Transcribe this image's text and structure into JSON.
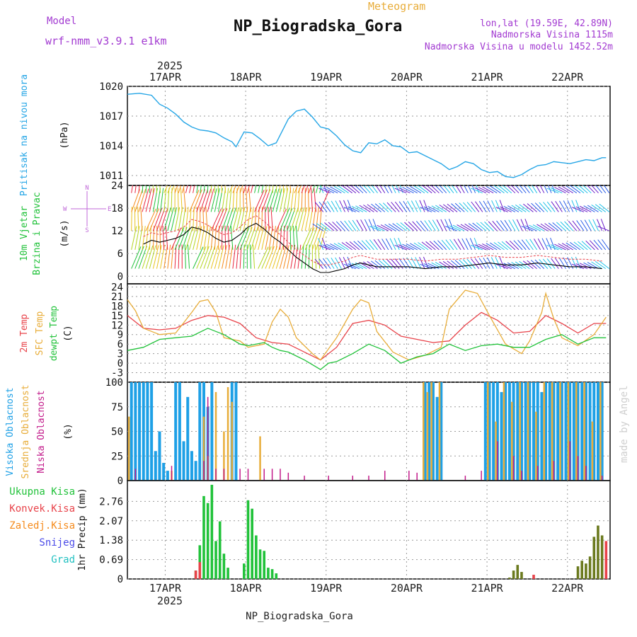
{
  "header": {
    "model_label": "Model",
    "model_name": "wrf-nmm_v3.9.1 e1km",
    "product": "Meteogram",
    "station": "NP_Biogradska_Gora",
    "lonlat": "lon,lat (19.59E, 42.89N)",
    "elevation": "Nadmorska Visina 1115m",
    "model_elevation": "Nadmorska Visina u modelu 1452.52m",
    "credit": "made by Angel",
    "footer": "NP_Biogradska_Gora"
  },
  "time_axis": {
    "year": "2025",
    "labels": [
      "17APR",
      "18APR",
      "19APR",
      "20APR",
      "21APR",
      "22APR"
    ],
    "day_offsets": [
      0.47,
      1.47,
      2.47,
      3.47,
      4.47,
      5.47
    ],
    "hours_total": 144
  },
  "chart_data": [
    {
      "type": "line",
      "id": "pressure",
      "ylabel_lines": [
        "Pritisak na nivou mora"
      ],
      "unit": "(hPa)",
      "ylim": [
        1010,
        1020
      ],
      "yticks": [
        1011,
        1014,
        1017,
        1020
      ],
      "series": [
        {
          "color": "#26a6e6",
          "x_days": [
            0,
            0.15,
            0.3,
            0.4,
            0.5,
            0.6,
            0.7,
            0.8,
            0.9,
            1.0,
            1.1,
            1.2,
            1.3,
            1.35,
            1.45,
            1.55,
            1.65,
            1.75,
            1.85,
            2.0,
            2.1,
            2.2,
            2.3,
            2.4,
            2.5,
            2.6,
            2.7,
            2.8,
            2.9,
            3.0,
            3.1,
            3.2,
            3.3,
            3.4,
            3.5,
            3.6,
            3.7,
            3.8,
            3.9,
            4.0,
            4.1,
            4.2,
            4.3,
            4.4,
            4.5,
            4.6,
            4.7,
            4.8,
            4.9,
            5.0,
            5.1,
            5.2,
            5.3,
            5.4,
            5.5,
            5.6,
            5.7,
            5.8,
            5.9,
            5.95
          ],
          "values": [
            1019.2,
            1019.3,
            1019.1,
            1018.2,
            1017.8,
            1017.2,
            1016.4,
            1015.9,
            1015.6,
            1015.5,
            1015.3,
            1014.8,
            1014.4,
            1013.9,
            1015.4,
            1015.3,
            1014.7,
            1014.0,
            1014.3,
            1016.7,
            1017.5,
            1017.7,
            1016.9,
            1015.9,
            1015.7,
            1015.0,
            1014.1,
            1013.5,
            1013.3,
            1014.3,
            1014.2,
            1014.6,
            1014.0,
            1013.9,
            1013.3,
            1013.4,
            1013.0,
            1012.6,
            1012.2,
            1011.6,
            1011.9,
            1012.4,
            1012.2,
            1011.6,
            1011.3,
            1011.4,
            1010.9,
            1010.8,
            1011.1,
            1011.6,
            1012.0,
            1012.1,
            1012.4,
            1012.3,
            1012.2,
            1012.4,
            1012.6,
            1012.5,
            1012.8,
            1012.8
          ]
        }
      ]
    },
    {
      "type": "line",
      "id": "wind",
      "ylabel_lines": [
        "10m Vjetar",
        "Brzina i Pravac"
      ],
      "unit": "(m/s)",
      "ylim": [
        -2,
        24
      ],
      "yticks": [
        0,
        6,
        12,
        18,
        24
      ],
      "compass": [
        "N",
        "E",
        "S",
        "W"
      ],
      "barb_rows": [
        2,
        7,
        12,
        17,
        22
      ],
      "barb_colors_by_phase": [
        "#6a1fc9",
        "#2b5ee8",
        "#22c1e8",
        "#21c23a",
        "#b4d421",
        "#e8c21f",
        "#f58b1c",
        "#e8273f"
      ],
      "series": [
        {
          "name": "speed",
          "color": "#000000",
          "x_days": [
            0.2,
            0.3,
            0.4,
            0.5,
            0.6,
            0.7,
            0.8,
            0.9,
            1.0,
            1.1,
            1.2,
            1.3,
            1.4,
            1.5,
            1.6,
            1.7,
            1.8,
            1.9,
            2.0,
            2.1,
            2.2,
            2.3,
            2.4,
            2.5,
            2.6,
            2.7,
            2.8,
            2.9,
            3.0,
            3.1,
            3.3,
            3.5,
            3.7,
            3.9,
            4.1,
            4.3,
            4.5,
            4.7,
            4.9,
            5.1,
            5.3,
            5.5,
            5.7,
            5.9
          ],
          "values": [
            8.5,
            9.5,
            9.0,
            9.5,
            10.0,
            11.0,
            13.0,
            12.5,
            11.5,
            10.0,
            9.0,
            9.5,
            11.0,
            13.0,
            14.0,
            12.5,
            10.5,
            9.0,
            7.0,
            5.0,
            3.5,
            2.0,
            1.0,
            1.0,
            1.5,
            2.0,
            3.0,
            3.5,
            3.0,
            2.5,
            2.5,
            2.5,
            2.0,
            2.5,
            2.5,
            3.0,
            3.5,
            3.0,
            3.0,
            3.5,
            3.0,
            2.5,
            2.5,
            2.0
          ]
        }
      ]
    },
    {
      "type": "line",
      "id": "temperature",
      "ylabel_lines": [
        "2m Temp",
        "SFC Temp",
        "dewpt Temp"
      ],
      "unit": "(C)",
      "ylim": [
        -6,
        25
      ],
      "yticks": [
        -3,
        0,
        3,
        6,
        9,
        12,
        15,
        18,
        21,
        24
      ],
      "series": [
        {
          "name": "2m Temp",
          "color": "#e8434a",
          "x_days": [
            0,
            0.2,
            0.4,
            0.6,
            0.8,
            1.0,
            1.2,
            1.4,
            1.6,
            1.8,
            2.0,
            2.2,
            2.4,
            2.6,
            2.8,
            3.0,
            3.2,
            3.4,
            3.6,
            3.8,
            4.0,
            4.2,
            4.4,
            4.6,
            4.8,
            5.0,
            5.2,
            5.4,
            5.6,
            5.8,
            5.95
          ],
          "values": [
            15.0,
            11.0,
            10.5,
            11.0,
            13.5,
            15.0,
            14.5,
            12.5,
            8.0,
            6.5,
            6.0,
            3.5,
            1.0,
            5.0,
            12.5,
            13.5,
            12.0,
            8.5,
            7.5,
            6.5,
            7.0,
            12.0,
            16.0,
            13.5,
            9.5,
            10.0,
            15.0,
            12.5,
            9.5,
            12.5,
            12.5
          ]
        },
        {
          "name": "SFC Temp",
          "color": "#e8ad3a",
          "x_days": [
            0,
            0.1,
            0.2,
            0.4,
            0.6,
            0.8,
            0.9,
            1.0,
            1.1,
            1.2,
            1.4,
            1.5,
            1.7,
            1.8,
            1.9,
            2.0,
            2.1,
            2.3,
            2.4,
            2.6,
            2.8,
            2.9,
            3.0,
            3.1,
            3.3,
            3.5,
            3.7,
            3.9,
            4.0,
            4.2,
            4.35,
            4.5,
            4.7,
            4.9,
            5.0,
            5.15,
            5.2,
            5.3,
            5.4,
            5.6,
            5.8,
            5.95
          ],
          "values": [
            20.0,
            16.5,
            11.0,
            9.0,
            9.5,
            16.0,
            19.5,
            20.0,
            16.0,
            8.0,
            7.0,
            5.0,
            6.0,
            13.0,
            17.0,
            14.5,
            8.0,
            3.0,
            1.0,
            8.0,
            17.0,
            20.0,
            19.0,
            10.0,
            3.5,
            1.0,
            2.5,
            5.0,
            17.0,
            23.0,
            22.0,
            15.0,
            6.0,
            3.0,
            7.0,
            16.0,
            22.0,
            14.0,
            8.0,
            5.5,
            9.0,
            14.5
          ]
        },
        {
          "name": "dewpt Temp",
          "color": "#21c23a",
          "x_days": [
            0,
            0.2,
            0.4,
            0.6,
            0.8,
            1.0,
            1.1,
            1.2,
            1.4,
            1.5,
            1.7,
            1.8,
            1.9,
            2.0,
            2.2,
            2.4,
            2.5,
            2.6,
            2.8,
            3.0,
            3.2,
            3.4,
            3.6,
            3.8,
            4.0,
            4.2,
            4.4,
            4.6,
            4.8,
            5.0,
            5.2,
            5.4,
            5.6,
            5.8,
            5.95
          ],
          "values": [
            4.0,
            5.0,
            7.5,
            8.0,
            8.5,
            11.0,
            10.0,
            9.0,
            6.0,
            5.5,
            6.5,
            5.0,
            4.0,
            3.5,
            1.0,
            -2.0,
            0.0,
            0.5,
            3.0,
            6.0,
            4.0,
            0.0,
            2.0,
            3.0,
            6.0,
            4.0,
            5.5,
            6.0,
            5.0,
            5.0,
            7.5,
            9.0,
            6.0,
            8.0,
            8.0
          ]
        }
      ]
    },
    {
      "type": "bar",
      "id": "clouds",
      "ylabel_lines": [
        "Visoka Oblacnost",
        "Srednja Oblacnost",
        "Niska Oblacnost"
      ],
      "unit": "(%)",
      "ylim": [
        0,
        100
      ],
      "yticks": [
        0,
        25,
        50,
        75,
        100
      ],
      "series": [
        {
          "name": "Visoka Oblacnost",
          "color": "#1ea0e6",
          "x_days": [
            0.05,
            0.1,
            0.15,
            0.2,
            0.25,
            0.3,
            0.35,
            0.4,
            0.45,
            0.5,
            0.6,
            0.65,
            0.7,
            0.75,
            0.8,
            0.85,
            0.9,
            0.95,
            1.0,
            1.05,
            1.3,
            1.35,
            3.7,
            3.75,
            3.8,
            3.85,
            3.9,
            4.45,
            4.5,
            4.55,
            4.6,
            4.65,
            4.7,
            4.75,
            4.8,
            4.85,
            4.9,
            4.95,
            5.0,
            5.05,
            5.1,
            5.15,
            5.2,
            5.25,
            5.3,
            5.35,
            5.4,
            5.45,
            5.5,
            5.55,
            5.6,
            5.65,
            5.7,
            5.75,
            5.8,
            5.85,
            5.9
          ],
          "values": [
            100,
            100,
            100,
            100,
            100,
            100,
            30,
            50,
            18,
            10,
            100,
            100,
            40,
            85,
            30,
            20,
            100,
            100,
            75,
            100,
            100,
            100,
            100,
            100,
            100,
            85,
            100,
            100,
            100,
            100,
            100,
            90,
            100,
            100,
            100,
            100,
            100,
            100,
            100,
            100,
            100,
            90,
            100,
            100,
            100,
            100,
            100,
            100,
            100,
            100,
            100,
            100,
            100,
            100,
            100,
            100,
            100
          ]
        },
        {
          "name": "Srednja Oblacnost",
          "color": "#e8ad3a",
          "x_days": [
            0.02,
            0.55,
            0.95,
            1.0,
            1.1,
            1.2,
            1.25,
            1.3,
            1.65,
            3.68,
            3.73,
            3.78,
            3.88,
            4.48,
            4.58,
            4.68,
            4.78,
            4.88,
            4.98,
            5.08,
            5.18,
            5.28,
            5.38,
            5.48,
            5.58,
            5.68,
            5.78,
            5.88
          ],
          "values": [
            65,
            10,
            65,
            25,
            90,
            50,
            95,
            80,
            45,
            100,
            90,
            100,
            100,
            100,
            60,
            100,
            80,
            100,
            100,
            70,
            100,
            100,
            100,
            100,
            100,
            100,
            60,
            100
          ]
        },
        {
          "name": "Niska Oblacnost",
          "color": "#c21a8a",
          "x_days": [
            0.1,
            0.55,
            0.95,
            1.0,
            1.1,
            1.2,
            1.4,
            1.5,
            1.7,
            1.8,
            1.9,
            2.0,
            2.2,
            2.5,
            2.8,
            3.0,
            3.2,
            3.5,
            3.6,
            4.2,
            4.4,
            4.6,
            4.8,
            4.9,
            5.1,
            5.3,
            5.5,
            5.6,
            5.7,
            5.9
          ],
          "values": [
            12,
            15,
            20,
            85,
            12,
            12,
            12,
            12,
            12,
            12,
            12,
            8,
            5,
            5,
            5,
            5,
            10,
            10,
            8,
            5,
            10,
            40,
            25,
            10,
            15,
            20,
            40,
            25,
            15,
            5
          ]
        }
      ]
    },
    {
      "type": "bar",
      "id": "precip",
      "ylabel_lines": [
        "1hr Precip (mm)"
      ],
      "legend": [
        "Ukupna Kisa",
        "Konvek.Kisa",
        "Zaledj.Kisa",
        "Snijeg",
        "Grad"
      ],
      "legend_colors": [
        "#21c23a",
        "#e8434a",
        "#f58b1c",
        "#4a4ae8",
        "#22c1c1"
      ],
      "ylim": [
        0,
        3.5
      ],
      "yticks": [
        0,
        0.69,
        1.38,
        2.07,
        2.76
      ],
      "series": [
        {
          "name": "Ukupna Kisa",
          "color": "#21c23a",
          "x_days": [
            0.85,
            0.9,
            0.95,
            1.0,
            1.05,
            1.1,
            1.15,
            1.2,
            1.25,
            1.45,
            1.5,
            1.55,
            1.6,
            1.65,
            1.7,
            1.75,
            1.8,
            1.85
          ],
          "values": [
            0.3,
            1.2,
            2.95,
            2.7,
            3.35,
            1.35,
            2.05,
            0.9,
            0.4,
            0.55,
            2.8,
            2.5,
            1.55,
            1.05,
            1.0,
            0.4,
            0.35,
            0.2
          ]
        },
        {
          "name": "Konvek.Kisa",
          "color": "#e8434a",
          "x_days": [
            0.85,
            0.9,
            5.05,
            5.95
          ],
          "values": [
            0.3,
            0.6,
            0.15,
            1.35
          ]
        },
        {
          "name": "Ukupna (mixed)",
          "color": "#6b7a1e",
          "x_days": [
            4.75,
            4.8,
            4.85,
            4.9,
            5.6,
            5.65,
            5.7,
            5.75,
            5.8,
            5.85,
            5.9
          ],
          "values": [
            0.05,
            0.3,
            0.5,
            0.25,
            0.45,
            0.65,
            0.55,
            0.8,
            1.5,
            1.9,
            1.55
          ]
        }
      ]
    }
  ]
}
